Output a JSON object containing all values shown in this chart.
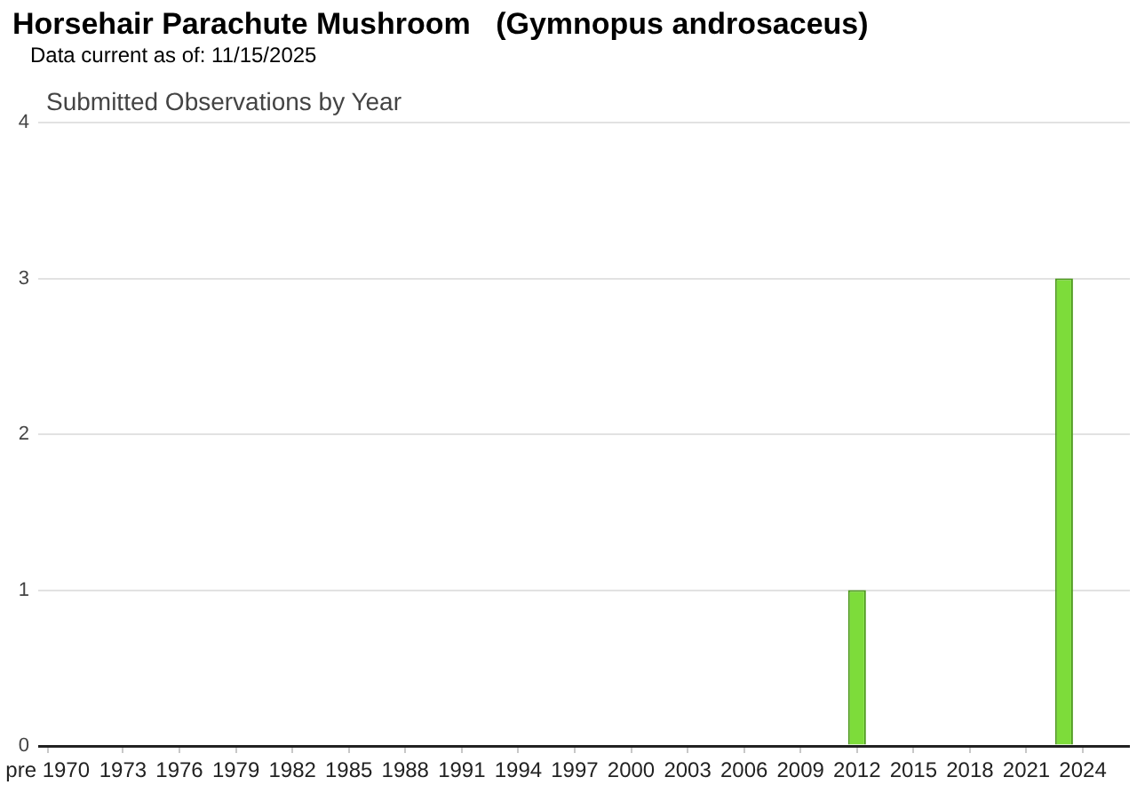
{
  "chart_data": {
    "type": "bar",
    "title": "Horsehair Parachute Mushroom   (Gymnopus androsaceus)",
    "subtitle": "Submitted Observations by Year",
    "annotations": [
      "Data current as of: 11/15/2025"
    ],
    "categories": [
      "pre 1970",
      null,
      null,
      null,
      "1973",
      null,
      null,
      "1976",
      null,
      null,
      "1979",
      null,
      null,
      "1982",
      null,
      null,
      "1985",
      null,
      null,
      "1988",
      null,
      null,
      "1991",
      null,
      null,
      "1994",
      null,
      null,
      "1997",
      null,
      null,
      "2000",
      null,
      null,
      "2003",
      null,
      null,
      "2006",
      null,
      null,
      "2009",
      null,
      null,
      "2012",
      null,
      null,
      "2015",
      null,
      null,
      "2018",
      null,
      null,
      "2021",
      null,
      null,
      "2024",
      null,
      null
    ],
    "values": [
      0,
      0,
      0,
      0,
      0,
      0,
      0,
      0,
      0,
      0,
      0,
      0,
      0,
      0,
      0,
      0,
      0,
      0,
      0,
      0,
      0,
      0,
      0,
      0,
      0,
      0,
      0,
      0,
      0,
      0,
      0,
      0,
      0,
      0,
      0,
      0,
      0,
      0,
      0,
      0,
      0,
      0,
      0,
      1,
      0,
      0,
      0,
      0,
      0,
      0,
      0,
      0,
      0,
      0,
      3,
      0,
      0,
      0
    ],
    "color": "#7ddc3a",
    "ylim": [
      0,
      4
    ],
    "yticks": [
      0,
      1,
      2,
      3,
      4
    ],
    "grid": "y"
  }
}
